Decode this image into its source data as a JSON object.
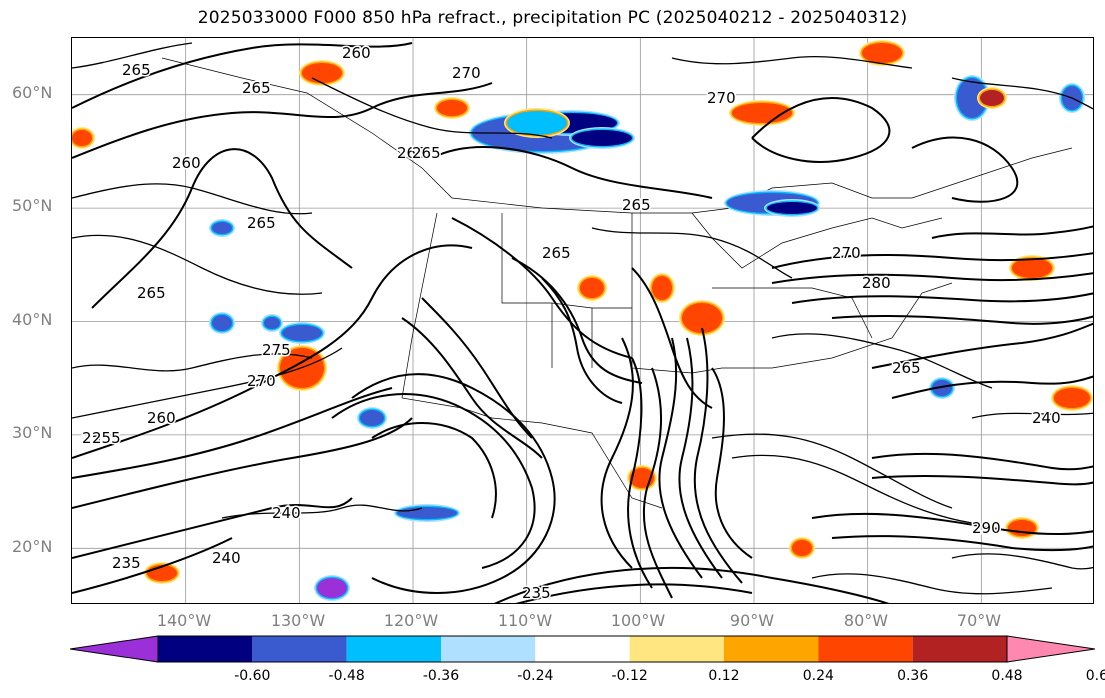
{
  "title": "2025033000 F000 850 hPa refract., precipitation PC (2025040212 - 2025040312)",
  "map": {
    "projection": "lat-lon",
    "lon_range": [
      -150,
      -60
    ],
    "lat_range": [
      15,
      65
    ],
    "lat_labels": [
      "60°N",
      "50°N",
      "40°N",
      "30°N",
      "20°N"
    ],
    "lon_labels": [
      "140°W",
      "130°W",
      "120°W",
      "110°W",
      "100°W",
      "90°W",
      "80°W",
      "70°W"
    ],
    "contour_labels": [
      "265",
      "260",
      "265",
      "270",
      "265",
      "265",
      "270",
      "260",
      "265",
      "265",
      "265",
      "270",
      "265",
      "275",
      "270",
      "260",
      "255",
      "265",
      "240",
      "235",
      "240",
      "235",
      "255",
      "240",
      "280",
      "290"
    ],
    "gridlines": true
  },
  "colorbar": {
    "colors": [
      "#9b30d9",
      "#000080",
      "#3a5bd0",
      "#00bfff",
      "#b0e0ff",
      "#ffffff",
      "#ffe680",
      "#ffa500",
      "#ff4500",
      "#b22222",
      "#ff88b0"
    ],
    "tick_labels": [
      "-0.60",
      "-0.48",
      "-0.36",
      "-0.24",
      "-0.12",
      "0.12",
      "0.24",
      "0.36",
      "0.48",
      "0.60"
    ],
    "extend": "both"
  }
}
